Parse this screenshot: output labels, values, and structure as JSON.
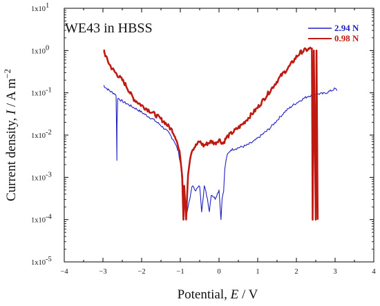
{
  "chart_data": {
    "type": "line",
    "title": "WE43 in HBSS",
    "xlabel": {
      "prefix": "Potential, ",
      "var": "E",
      "suffix": " / V"
    },
    "ylabel": {
      "prefix": "Current density, ",
      "var": "I",
      "suffix": " / A m",
      "sup": "−2"
    },
    "xlim": [
      -4,
      4
    ],
    "ylim_log10": [
      -5,
      1
    ],
    "y_scale": "log",
    "x_ticks": [
      "−4",
      "−3",
      "−2",
      "−1",
      "0",
      "1",
      "2",
      "3",
      "4"
    ],
    "y_ticks": [
      {
        "base": "1x10",
        "exp": "1"
      },
      {
        "base": "1x10",
        "exp": "0"
      },
      {
        "base": "1x10",
        "exp": "-1"
      },
      {
        "base": "1x10",
        "exp": "-2"
      },
      {
        "base": "1x10",
        "exp": "-3"
      },
      {
        "base": "1x10",
        "exp": "-4"
      },
      {
        "base": "1x10",
        "exp": "-5"
      }
    ],
    "legend_position": "top-right",
    "grid": false,
    "series": [
      {
        "name": "2.94 N",
        "color": "#1f1fbf",
        "points": [
          [
            -2.98,
            -0.82
          ],
          [
            -2.96,
            -0.85
          ],
          [
            -2.9,
            -0.9
          ],
          [
            -2.8,
            -0.97
          ],
          [
            -2.7,
            -1.02
          ],
          [
            -2.66,
            -1.07
          ],
          [
            -2.65,
            -1.75
          ],
          [
            -2.64,
            -2.6
          ],
          [
            -2.635,
            -1.75
          ],
          [
            -2.62,
            -1.12
          ],
          [
            -2.5,
            -1.2
          ],
          [
            -2.3,
            -1.3
          ],
          [
            -2.1,
            -1.4
          ],
          [
            -1.9,
            -1.52
          ],
          [
            -1.7,
            -1.63
          ],
          [
            -1.5,
            -1.77
          ],
          [
            -1.3,
            -1.95
          ],
          [
            -1.15,
            -2.15
          ],
          [
            -1.05,
            -2.4
          ],
          [
            -0.98,
            -2.75
          ],
          [
            -0.95,
            -3.3
          ],
          [
            -0.92,
            -4.0
          ],
          [
            -0.88,
            -3.4
          ],
          [
            -0.85,
            -4.0
          ],
          [
            -0.8,
            -3.7
          ],
          [
            -0.75,
            -3.5
          ],
          [
            -0.7,
            -3.2
          ],
          [
            -0.6,
            -3.3
          ],
          [
            -0.5,
            -3.2
          ],
          [
            -0.45,
            -3.8
          ],
          [
            -0.42,
            -3.55
          ],
          [
            -0.38,
            -3.2
          ],
          [
            -0.3,
            -3.5
          ],
          [
            -0.25,
            -3.8
          ],
          [
            -0.2,
            -3.4
          ],
          [
            -0.1,
            -3.5
          ],
          [
            0.0,
            -3.3
          ],
          [
            0.05,
            -4.0
          ],
          [
            0.08,
            -3.5
          ],
          [
            0.12,
            -3.3
          ],
          [
            0.15,
            -2.8
          ],
          [
            0.2,
            -2.5
          ],
          [
            0.3,
            -2.35
          ],
          [
            0.5,
            -2.3
          ],
          [
            0.7,
            -2.25
          ],
          [
            0.9,
            -2.15
          ],
          [
            1.1,
            -2.0
          ],
          [
            1.3,
            -1.85
          ],
          [
            1.5,
            -1.65
          ],
          [
            1.7,
            -1.45
          ],
          [
            1.9,
            -1.3
          ],
          [
            2.1,
            -1.18
          ],
          [
            2.3,
            -1.08
          ],
          [
            2.5,
            -1.03
          ],
          [
            2.7,
            -1.02
          ],
          [
            2.9,
            -0.95
          ],
          [
            3.0,
            -0.9
          ],
          [
            3.05,
            -0.95
          ]
        ]
      },
      {
        "name": "0.98 N",
        "color": "#bf1a12",
        "points": [
          [
            -2.97,
            0.0
          ],
          [
            -2.96,
            -0.05
          ],
          [
            -2.9,
            -0.2
          ],
          [
            -2.8,
            -0.38
          ],
          [
            -2.7,
            -0.5
          ],
          [
            -2.6,
            -0.6
          ],
          [
            -2.5,
            -0.7
          ],
          [
            -2.4,
            -0.83
          ],
          [
            -2.3,
            -1.0
          ],
          [
            -2.2,
            -1.15
          ],
          [
            -2.0,
            -1.3
          ],
          [
            -1.8,
            -1.42
          ],
          [
            -1.6,
            -1.55
          ],
          [
            -1.4,
            -1.7
          ],
          [
            -1.2,
            -1.9
          ],
          [
            -1.1,
            -2.1
          ],
          [
            -1.0,
            -2.5
          ],
          [
            -0.95,
            -3.0
          ],
          [
            -0.92,
            -4.0
          ],
          [
            -0.9,
            -3.2
          ],
          [
            -0.85,
            -4.0
          ],
          [
            -0.8,
            -2.9
          ],
          [
            -0.75,
            -2.55
          ],
          [
            -0.7,
            -2.35
          ],
          [
            -0.6,
            -2.25
          ],
          [
            -0.5,
            -2.15
          ],
          [
            -0.4,
            -2.25
          ],
          [
            -0.3,
            -2.2
          ],
          [
            -0.2,
            -2.15
          ],
          [
            -0.1,
            -2.2
          ],
          [
            0.0,
            -2.1
          ],
          [
            0.1,
            -2.2
          ],
          [
            0.2,
            -2.05
          ],
          [
            0.4,
            -1.9
          ],
          [
            0.6,
            -1.75
          ],
          [
            0.8,
            -1.55
          ],
          [
            1.0,
            -1.35
          ],
          [
            1.2,
            -1.1
          ],
          [
            1.4,
            -0.85
          ],
          [
            1.6,
            -0.6
          ],
          [
            1.8,
            -0.4
          ],
          [
            2.0,
            -0.15
          ],
          [
            2.1,
            -0.05
          ],
          [
            2.2,
            0.0
          ],
          [
            2.4,
            0.05
          ],
          [
            2.42,
            -4.0
          ],
          [
            2.45,
            0.0
          ],
          [
            2.5,
            -4.0
          ],
          [
            2.52,
            0.0
          ],
          [
            2.55,
            -4.0
          ]
        ]
      }
    ]
  }
}
